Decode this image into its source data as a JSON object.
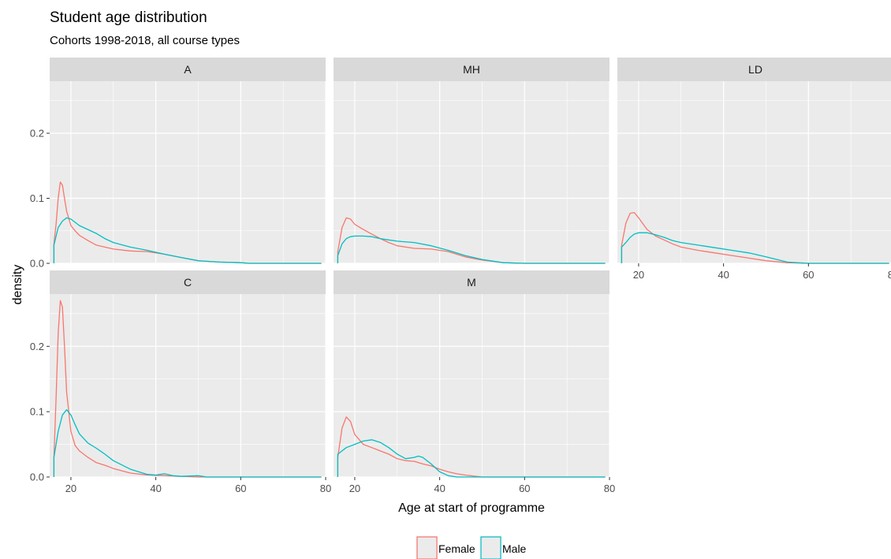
{
  "chart_data": {
    "type": "line",
    "title": "Student age distribution",
    "subtitle": "Cohorts 1998-2018, all course types",
    "xlabel": "Age at start of programme",
    "ylabel": "density",
    "xlim": [
      15,
      80
    ],
    "ylim": [
      0,
      0.28
    ],
    "xticks": [
      20,
      40,
      60,
      80
    ],
    "yticks": [
      0.0,
      0.1,
      0.2
    ],
    "grid": true,
    "legend_position": "bottom",
    "colors": {
      "Female": "#F8766D",
      "Male": "#00BFC4",
      "panel_bg": "#EBEBEB",
      "strip_bg": "#D9D9D9",
      "grid": "#FFFFFF"
    },
    "series_names": [
      "Female",
      "Male"
    ],
    "panels": [
      {
        "label": "A",
        "series": [
          {
            "name": "Female",
            "x": [
              16,
              16.5,
              17,
              17.5,
              18,
              18.5,
              19,
              20,
              21,
              22,
              24,
              26,
              28,
              30,
              34,
              38,
              42,
              46,
              50,
              55,
              60,
              62
            ],
            "y": [
              0.03,
              0.06,
              0.1,
              0.125,
              0.12,
              0.1,
              0.08,
              0.058,
              0.05,
              0.043,
              0.035,
              0.028,
              0.025,
              0.022,
              0.019,
              0.018,
              0.014,
              0.009,
              0.004,
              0.002,
              0.001,
              0
            ]
          },
          {
            "name": "Male",
            "x": [
              16,
              17,
              18,
              19,
              20,
              21,
              22,
              24,
              26,
              28,
              30,
              34,
              38,
              42,
              46,
              50,
              55,
              60,
              62
            ],
            "y": [
              0.028,
              0.055,
              0.065,
              0.07,
              0.068,
              0.063,
              0.058,
              0.052,
              0.046,
              0.038,
              0.032,
              0.025,
              0.02,
              0.014,
              0.009,
              0.004,
              0.002,
              0.001,
              0
            ]
          }
        ]
      },
      {
        "label": "MH",
        "series": [
          {
            "name": "Female",
            "x": [
              16,
              17,
              18,
              19,
              20,
              22,
              24,
              26,
              28,
              30,
              34,
              38,
              42,
              46,
              50,
              55,
              60
            ],
            "y": [
              0.018,
              0.055,
              0.07,
              0.068,
              0.06,
              0.052,
              0.045,
              0.038,
              0.032,
              0.027,
              0.023,
              0.022,
              0.018,
              0.01,
              0.005,
              0.001,
              0
            ]
          },
          {
            "name": "Male",
            "x": [
              16,
              17,
              18,
              19,
              20,
              22,
              24,
              26,
              28,
              30,
              34,
              38,
              42,
              46,
              50,
              55,
              60
            ],
            "y": [
              0.012,
              0.03,
              0.038,
              0.041,
              0.042,
              0.042,
              0.041,
              0.038,
              0.036,
              0.034,
              0.032,
              0.027,
              0.02,
              0.012,
              0.006,
              0.001,
              0
            ]
          }
        ]
      },
      {
        "label": "LD",
        "series": [
          {
            "name": "Female",
            "x": [
              16,
              17,
              18,
              19,
              20,
              22,
              24,
              26,
              28,
              30,
              34,
              38,
              42,
              46,
              50,
              55,
              60
            ],
            "y": [
              0.028,
              0.062,
              0.077,
              0.078,
              0.07,
              0.052,
              0.042,
              0.036,
              0.03,
              0.025,
              0.02,
              0.016,
              0.012,
              0.008,
              0.004,
              0.001,
              0
            ]
          },
          {
            "name": "Male",
            "x": [
              16,
              17,
              18,
              19,
              20,
              22,
              24,
              26,
              28,
              30,
              34,
              38,
              42,
              46,
              50,
              55,
              60
            ],
            "y": [
              0.025,
              0.032,
              0.04,
              0.045,
              0.047,
              0.047,
              0.044,
              0.04,
              0.035,
              0.032,
              0.028,
              0.024,
              0.02,
              0.016,
              0.01,
              0.002,
              0
            ]
          }
        ]
      },
      {
        "label": "C",
        "series": [
          {
            "name": "Female",
            "x": [
              16,
              16.5,
              17,
              17.5,
              18,
              18.5,
              19,
              20,
              21,
              22,
              24,
              26,
              28,
              30,
              34,
              38,
              42,
              46,
              50
            ],
            "y": [
              0.03,
              0.12,
              0.22,
              0.27,
              0.26,
              0.2,
              0.13,
              0.07,
              0.048,
              0.04,
              0.03,
              0.022,
              0.018,
              0.013,
              0.006,
              0.003,
              0.002,
              0.001,
              0
            ]
          },
          {
            "name": "Male",
            "x": [
              16,
              17,
              18,
              19,
              20,
              21,
              22,
              24,
              26,
              28,
              30,
              34,
              38,
              40,
              42,
              44,
              46,
              50,
              52
            ],
            "y": [
              0.03,
              0.07,
              0.095,
              0.103,
              0.095,
              0.08,
              0.066,
              0.052,
              0.044,
              0.035,
              0.025,
              0.012,
              0.004,
              0.003,
              0.005,
              0.002,
              0.001,
              0.002,
              0
            ]
          }
        ]
      },
      {
        "label": "M",
        "series": [
          {
            "name": "Female",
            "x": [
              16,
              17,
              18,
              19,
              20,
              22,
              24,
              26,
              28,
              30,
              32,
              34,
              36,
              38,
              40,
              42,
              44,
              46,
              50
            ],
            "y": [
              0.03,
              0.075,
              0.092,
              0.085,
              0.065,
              0.05,
              0.045,
              0.04,
              0.035,
              0.028,
              0.025,
              0.024,
              0.02,
              0.017,
              0.012,
              0.008,
              0.005,
              0.003,
              0
            ]
          },
          {
            "name": "Male",
            "x": [
              16,
              18,
              20,
              22,
              24,
              26,
              28,
              30,
              32,
              34,
              35,
              36,
              38,
              40,
              42,
              44
            ],
            "y": [
              0.035,
              0.045,
              0.05,
              0.055,
              0.057,
              0.053,
              0.045,
              0.035,
              0.028,
              0.03,
              0.032,
              0.03,
              0.02,
              0.008,
              0.002,
              0
            ]
          }
        ]
      }
    ]
  }
}
